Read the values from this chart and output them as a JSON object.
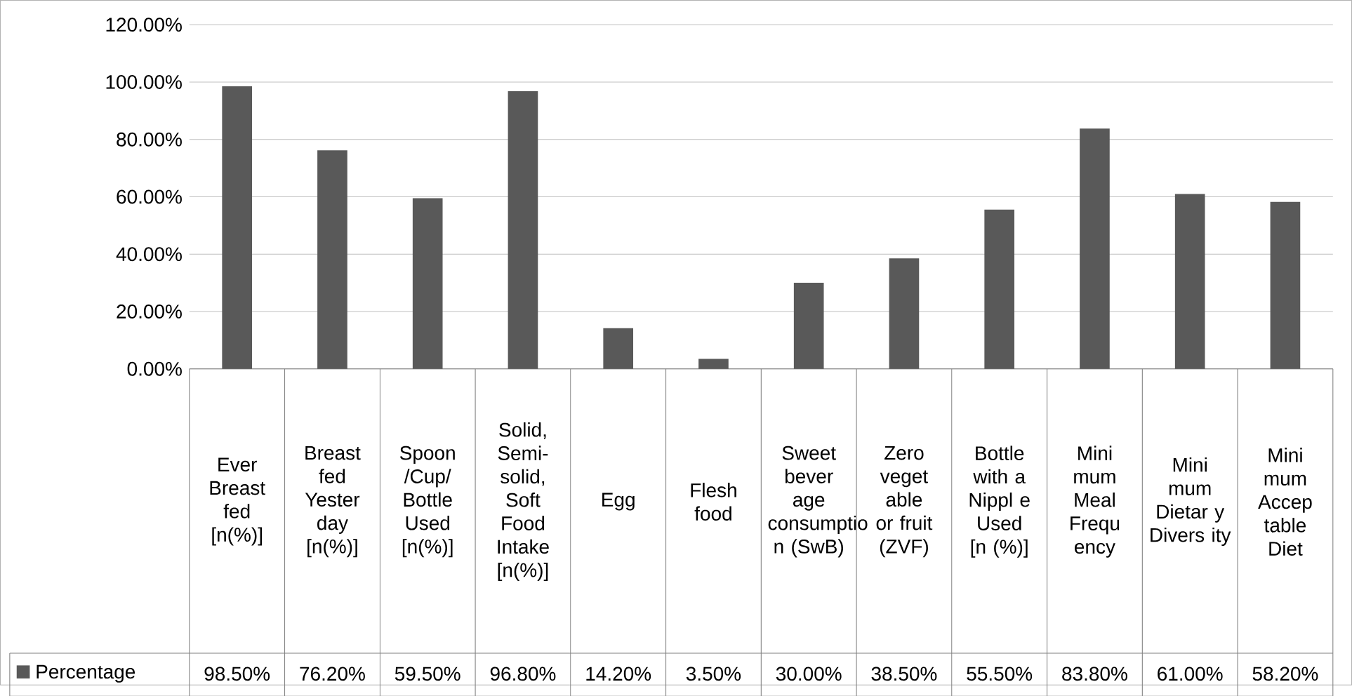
{
  "chart_data": {
    "type": "bar",
    "categories": [
      "Ever Breast fed [n(%)]",
      "Breast fed Yester day [n(%)]",
      "Spoon /Cup/ Bottle Used [n(%)]",
      "Solid, Semi-solid, Soft Food Intake [n(%)]",
      "Egg",
      "Flesh food",
      "Sweet bever age consumptio n (SwB)",
      "Zero veget able or fruit (ZVF)",
      "Bottle with a Nippl e Used [n (%)]",
      "Mini mum Meal Frequ ency",
      "Mini mum Dietar y Divers ity",
      "Mini mum Accep table Diet"
    ],
    "series": [
      {
        "name": "Percentage",
        "color": "#595959",
        "values": [
          98.5,
          76.2,
          59.5,
          96.8,
          14.2,
          3.5,
          30.0,
          38.5,
          55.5,
          83.8,
          61.0,
          58.2
        ],
        "value_labels": [
          "98.50%",
          "76.20%",
          "59.50%",
          "96.80%",
          "14.20%",
          "3.50%",
          "30.00%",
          "38.50%",
          "55.50%",
          "83.80%",
          "61.00%",
          "58.20%"
        ]
      }
    ],
    "ylim": [
      0,
      120
    ],
    "yticks": [
      {
        "value": 0,
        "label": "0.00%"
      },
      {
        "value": 20,
        "label": "20.00%"
      },
      {
        "value": 40,
        "label": "40.00%"
      },
      {
        "value": 60,
        "label": "60.00%"
      },
      {
        "value": 80,
        "label": "80.00%"
      },
      {
        "value": 100,
        "label": "100.00%"
      },
      {
        "value": 120,
        "label": "120.00%"
      }
    ],
    "grid": "y",
    "legend": "bottom left"
  }
}
